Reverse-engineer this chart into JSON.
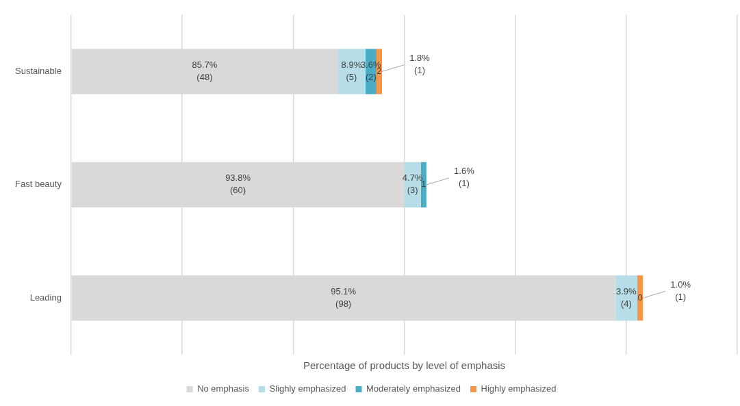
{
  "chart_data": {
    "type": "bar",
    "orientation": "horizontal",
    "stacked": true,
    "categories": [
      "Sustainable",
      "Fast beauty",
      "Leading"
    ],
    "xlabel": "Percentage of products by level of emphasis",
    "xlim": [
      0,
      120
    ],
    "xticks": [
      {
        "value": 0,
        "label": null
      },
      {
        "value": 20,
        "label": null
      },
      {
        "value": 40,
        "label": null
      },
      {
        "value": 60,
        "label": null
      },
      {
        "value": 80,
        "label": null
      },
      {
        "value": 100,
        "label": null
      },
      {
        "value": 120,
        "label": null
      }
    ],
    "tick_labels": "y",
    "grid": "x",
    "legend": "bottom",
    "series": [
      {
        "name": "No emphasis",
        "color": "#d9d9d9",
        "values": [
          48,
          60,
          98
        ],
        "value_labels": [
          "85.7%\n(48)",
          "93.8%\n(60)",
          "95.1%\n(98)"
        ]
      },
      {
        "name": "Slighly emphasized",
        "color": "#b7dee8",
        "values": [
          5,
          3,
          4
        ],
        "value_labels": [
          "8.9%\n(5)",
          "4.7%\n(3)",
          "3.9%\n(4)"
        ]
      },
      {
        "name": "Moderately emphasized",
        "color": "#4bacc6",
        "values": [
          2,
          1,
          0
        ],
        "value_labels": [
          "3.6%\n(2)",
          "1.6%\n(1)",
          null
        ]
      },
      {
        "name": "Highly emphasized",
        "color": "#f79646",
        "values": [
          1,
          0,
          1
        ],
        "value_labels": [
          "1.8%\n(1)",
          null,
          "1.0%\n(1)"
        ]
      }
    ],
    "annotations": [
      {
        "text": "2",
        "x": 55.5,
        "y": "Sustainable"
      },
      {
        "text": "1",
        "x": 63.5,
        "y": "Fast beauty"
      },
      {
        "text": "0",
        "x": 102.5,
        "y": "Leading"
      }
    ]
  }
}
